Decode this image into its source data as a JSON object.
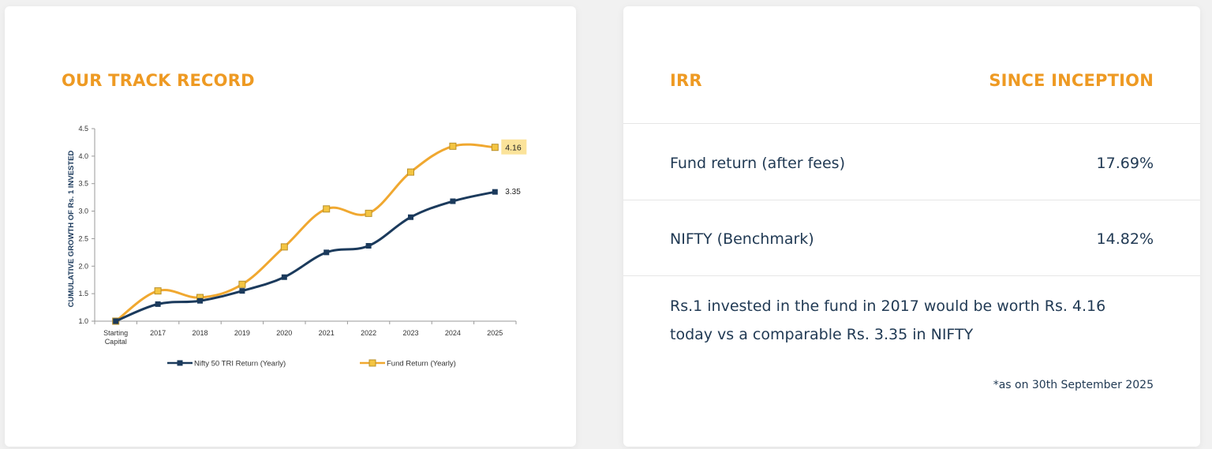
{
  "track_record": {
    "title": "OUR TRACK RECORD"
  },
  "chart_data": {
    "type": "line",
    "title": "",
    "ylabel": "CUMULATIVE GROWTH OF Rs. 1 INVESTED",
    "xlabel": "",
    "categories": [
      "Starting Capital",
      "2017",
      "2018",
      "2019",
      "2020",
      "2021",
      "2022",
      "2023",
      "2024",
      "2025"
    ],
    "ylim": [
      1.0,
      4.5
    ],
    "yticks": [
      "1.0",
      "1.5",
      "2.0",
      "2.5",
      "3.0",
      "3.5",
      "4.0",
      "4.5"
    ],
    "grid": false,
    "legend_position": "bottom",
    "series": [
      {
        "name": "Nifty 50 TRI Return (Yearly)",
        "color": "#1b3a5c",
        "values": [
          1.0,
          1.31,
          1.37,
          1.55,
          1.8,
          2.25,
          2.37,
          2.89,
          3.18,
          3.35
        ],
        "end_label": "3.35"
      },
      {
        "name": "Fund Return (Yearly)",
        "color": "#f0a830",
        "values": [
          1.0,
          1.55,
          1.43,
          1.67,
          2.35,
          3.04,
          2.96,
          3.71,
          4.18,
          4.16
        ],
        "end_label": "4.16"
      }
    ]
  },
  "irr": {
    "header_left": "IRR",
    "header_right": "SINCE INCEPTION",
    "rows": [
      {
        "label": "Fund return (after fees)",
        "value": "17.69%"
      },
      {
        "label": "NIFTY (Benchmark)",
        "value": "14.82%"
      }
    ],
    "summary": "Rs.1 invested in the fund in 2017 would be worth Rs. 4.16 today vs a comparable Rs. 3.35 in NIFTY",
    "footnote": "*as on 30th September 2025"
  }
}
